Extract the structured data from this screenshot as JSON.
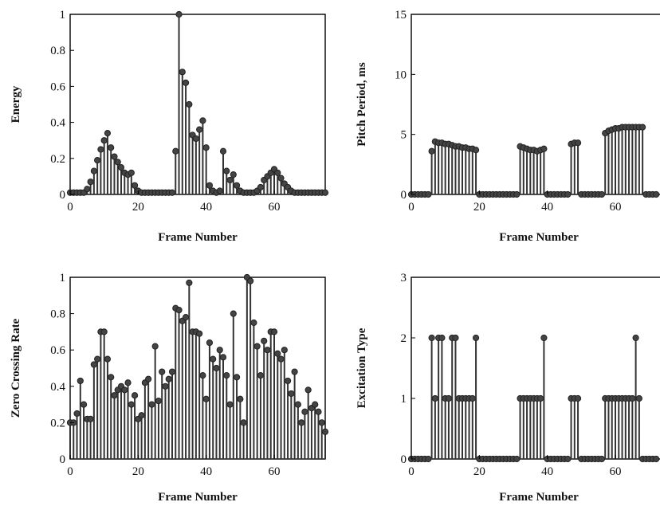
{
  "chart_data": [
    {
      "type": "stem",
      "xlabel": "Frame Number",
      "ylabel": "Energy",
      "xlim": [
        0,
        75
      ],
      "ylim": [
        0,
        1
      ],
      "xticks": [
        0,
        20,
        40,
        60
      ],
      "yticks": [
        0,
        0.2,
        0.4,
        0.6,
        0.8,
        1
      ],
      "ytick_labels": [
        "0",
        "0.2",
        "0.4",
        "0.6",
        "0.8",
        "1"
      ],
      "x": [
        0,
        1,
        2,
        3,
        4,
        5,
        6,
        7,
        8,
        9,
        10,
        11,
        12,
        13,
        14,
        15,
        16,
        17,
        18,
        19,
        20,
        21,
        22,
        23,
        24,
        25,
        26,
        27,
        28,
        29,
        30,
        31,
        32,
        33,
        34,
        35,
        36,
        37,
        38,
        39,
        40,
        41,
        42,
        43,
        44,
        45,
        46,
        47,
        48,
        49,
        50,
        51,
        52,
        53,
        54,
        55,
        56,
        57,
        58,
        59,
        60,
        61,
        62,
        63,
        64,
        65,
        66,
        67,
        68,
        69,
        70,
        71,
        72,
        73,
        74,
        75
      ],
      "values": [
        0.01,
        0.01,
        0.01,
        0.01,
        0.01,
        0.03,
        0.07,
        0.13,
        0.19,
        0.25,
        0.3,
        0.34,
        0.26,
        0.21,
        0.18,
        0.15,
        0.12,
        0.11,
        0.12,
        0.05,
        0.02,
        0.01,
        0.01,
        0.01,
        0.01,
        0.01,
        0.01,
        0.01,
        0.01,
        0.01,
        0.01,
        0.24,
        1.0,
        0.68,
        0.62,
        0.5,
        0.33,
        0.31,
        0.36,
        0.41,
        0.26,
        0.05,
        0.02,
        0.01,
        0.02,
        0.24,
        0.13,
        0.08,
        0.11,
        0.05,
        0.02,
        0.01,
        0.01,
        0.01,
        0.01,
        0.02,
        0.04,
        0.08,
        0.1,
        0.12,
        0.14,
        0.12,
        0.09,
        0.06,
        0.04,
        0.02,
        0.01,
        0.01,
        0.01,
        0.01,
        0.01,
        0.01,
        0.01,
        0.01,
        0.01,
        0.01
      ]
    },
    {
      "type": "stem",
      "xlabel": "Frame Number",
      "ylabel": "Pitch Period, ms",
      "xlim": [
        0,
        75
      ],
      "ylim": [
        0,
        15
      ],
      "xticks": [
        0,
        20,
        40,
        60
      ],
      "yticks": [
        0,
        5,
        10,
        15
      ],
      "ytick_labels": [
        "0",
        "5",
        "10",
        "15"
      ],
      "x": [
        0,
        1,
        2,
        3,
        4,
        5,
        6,
        7,
        8,
        9,
        10,
        11,
        12,
        13,
        14,
        15,
        16,
        17,
        18,
        19,
        20,
        21,
        22,
        23,
        24,
        25,
        26,
        27,
        28,
        29,
        30,
        31,
        32,
        33,
        34,
        35,
        36,
        37,
        38,
        39,
        40,
        41,
        42,
        43,
        44,
        45,
        46,
        47,
        48,
        49,
        50,
        51,
        52,
        53,
        54,
        55,
        56,
        57,
        58,
        59,
        60,
        61,
        62,
        63,
        64,
        65,
        66,
        67,
        68,
        69,
        70,
        71,
        72,
        73,
        74,
        75
      ],
      "values": [
        0,
        0,
        0,
        0,
        0,
        0,
        3.6,
        4.4,
        4.3,
        4.3,
        4.2,
        4.2,
        4.1,
        4.0,
        4.0,
        3.9,
        3.9,
        3.8,
        3.8,
        3.7,
        0,
        0,
        0,
        0,
        0,
        0,
        0,
        0,
        0,
        0,
        0,
        0,
        4.0,
        3.9,
        3.8,
        3.7,
        3.7,
        3.6,
        3.7,
        3.8,
        0,
        0,
        0,
        0,
        0,
        0,
        0,
        4.2,
        4.3,
        4.3,
        0,
        0,
        0,
        0,
        0,
        0,
        0,
        5.1,
        5.3,
        5.4,
        5.5,
        5.5,
        5.6,
        5.6,
        5.6,
        5.6,
        5.6,
        5.6,
        5.6,
        0,
        0,
        0,
        0,
        0,
        0,
        0
      ]
    },
    {
      "type": "stem",
      "xlabel": "Frame Number",
      "ylabel": "Zero Crossing Rate",
      "xlim": [
        0,
        75
      ],
      "ylim": [
        0,
        1
      ],
      "xticks": [
        0,
        20,
        40,
        60
      ],
      "yticks": [
        0,
        0.2,
        0.4,
        0.6,
        0.8,
        1
      ],
      "ytick_labels": [
        "0",
        "0.2",
        "0.4",
        "0.6",
        "0.8",
        "1"
      ],
      "x": [
        0,
        1,
        2,
        3,
        4,
        5,
        6,
        7,
        8,
        9,
        10,
        11,
        12,
        13,
        14,
        15,
        16,
        17,
        18,
        19,
        20,
        21,
        22,
        23,
        24,
        25,
        26,
        27,
        28,
        29,
        30,
        31,
        32,
        33,
        34,
        35,
        36,
        37,
        38,
        39,
        40,
        41,
        42,
        43,
        44,
        45,
        46,
        47,
        48,
        49,
        50,
        51,
        52,
        53,
        54,
        55,
        56,
        57,
        58,
        59,
        60,
        61,
        62,
        63,
        64,
        65,
        66,
        67,
        68,
        69,
        70,
        71,
        72,
        73,
        74,
        75
      ],
      "values": [
        0.2,
        0.2,
        0.25,
        0.43,
        0.3,
        0.22,
        0.22,
        0.52,
        0.55,
        0.7,
        0.7,
        0.55,
        0.45,
        0.35,
        0.38,
        0.4,
        0.38,
        0.42,
        0.3,
        0.35,
        0.22,
        0.24,
        0.42,
        0.44,
        0.3,
        0.62,
        0.32,
        0.48,
        0.4,
        0.44,
        0.48,
        0.83,
        0.82,
        0.76,
        0.78,
        0.97,
        0.7,
        0.7,
        0.69,
        0.46,
        0.33,
        0.64,
        0.55,
        0.5,
        0.6,
        0.56,
        0.46,
        0.3,
        0.8,
        0.45,
        0.33,
        0.2,
        1.0,
        0.98,
        0.75,
        0.62,
        0.46,
        0.65,
        0.6,
        0.7,
        0.7,
        0.58,
        0.55,
        0.6,
        0.43,
        0.36,
        0.48,
        0.3,
        0.2,
        0.26,
        0.38,
        0.28,
        0.3,
        0.26,
        0.2,
        0.15
      ]
    },
    {
      "type": "stem",
      "xlabel": "Frame Number",
      "ylabel": "Excitation Type",
      "xlim": [
        0,
        75
      ],
      "ylim": [
        0,
        3
      ],
      "xticks": [
        0,
        20,
        40,
        60
      ],
      "yticks": [
        0,
        1,
        2,
        3
      ],
      "ytick_labels": [
        "0",
        "1",
        "2",
        "3"
      ],
      "x": [
        0,
        1,
        2,
        3,
        4,
        5,
        6,
        7,
        8,
        9,
        10,
        11,
        12,
        13,
        14,
        15,
        16,
        17,
        18,
        19,
        20,
        21,
        22,
        23,
        24,
        25,
        26,
        27,
        28,
        29,
        30,
        31,
        32,
        33,
        34,
        35,
        36,
        37,
        38,
        39,
        40,
        41,
        42,
        43,
        44,
        45,
        46,
        47,
        48,
        49,
        50,
        51,
        52,
        53,
        54,
        55,
        56,
        57,
        58,
        59,
        60,
        61,
        62,
        63,
        64,
        65,
        66,
        67,
        68,
        69,
        70,
        71,
        72,
        73,
        74,
        75
      ],
      "values": [
        0,
        0,
        0,
        0,
        0,
        0,
        2,
        1,
        2,
        2,
        1,
        1,
        2,
        2,
        1,
        1,
        1,
        1,
        1,
        2,
        0,
        0,
        0,
        0,
        0,
        0,
        0,
        0,
        0,
        0,
        0,
        0,
        1,
        1,
        1,
        1,
        1,
        1,
        1,
        2,
        0,
        0,
        0,
        0,
        0,
        0,
        0,
        1,
        1,
        1,
        0,
        0,
        0,
        0,
        0,
        0,
        0,
        1,
        1,
        1,
        1,
        1,
        1,
        1,
        1,
        1,
        2,
        1,
        0,
        0,
        0,
        0,
        0,
        0,
        0,
        0
      ]
    }
  ]
}
